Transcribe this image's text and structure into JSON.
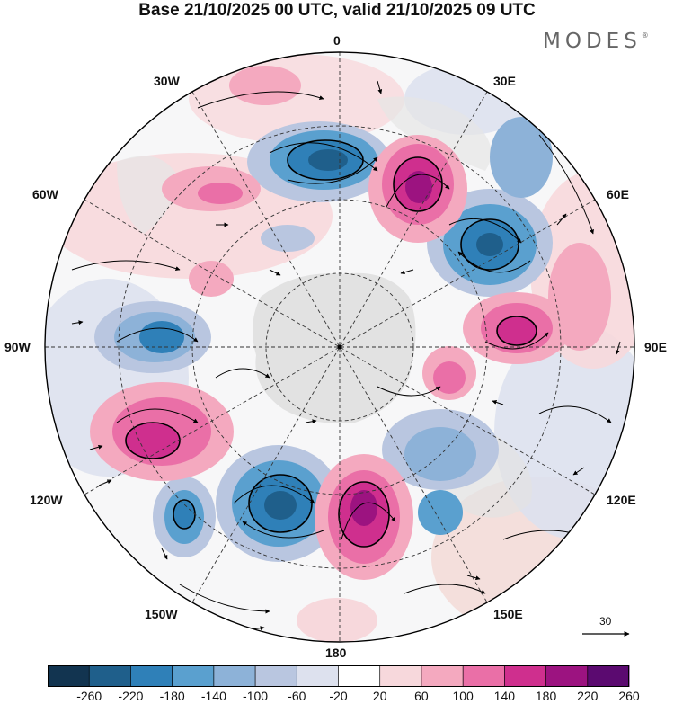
{
  "title": "Base 21/10/2025 00 UTC, valid 21/10/2025 09 UTC",
  "logo": "MODES",
  "logo_mark": "®",
  "graticule_labels": {
    "lon_0": "0",
    "lon_30e": "30E",
    "lon_60e": "60E",
    "lon_90e": "90E",
    "lon_120e": "120E",
    "lon_150e": "150E",
    "lon_180": "180",
    "lon_150w": "150W",
    "lon_120w": "120W",
    "lon_90w": "90W",
    "lon_60w": "60W",
    "lon_30w": "30W"
  },
  "reference_vector": {
    "value": "30"
  },
  "colorbar": {
    "ticks": [
      "-260",
      "-220",
      "-180",
      "-140",
      "-100",
      "-60",
      "-20",
      "20",
      "60",
      "100",
      "140",
      "180",
      "220",
      "260"
    ],
    "colors": [
      "#123450",
      "#1f5f8b",
      "#2f80b8",
      "#5aa0cf",
      "#8db2d8",
      "#b9c6e0",
      "#dde1ee",
      "#ffffff",
      "#f7d8dc",
      "#f4a9bf",
      "#ea6fa7",
      "#cf2f8e",
      "#9c1380",
      "#5b0a70"
    ]
  },
  "colors": {
    "land": "#dddddd",
    "graticule": "#333333",
    "stream": "#000000"
  }
}
